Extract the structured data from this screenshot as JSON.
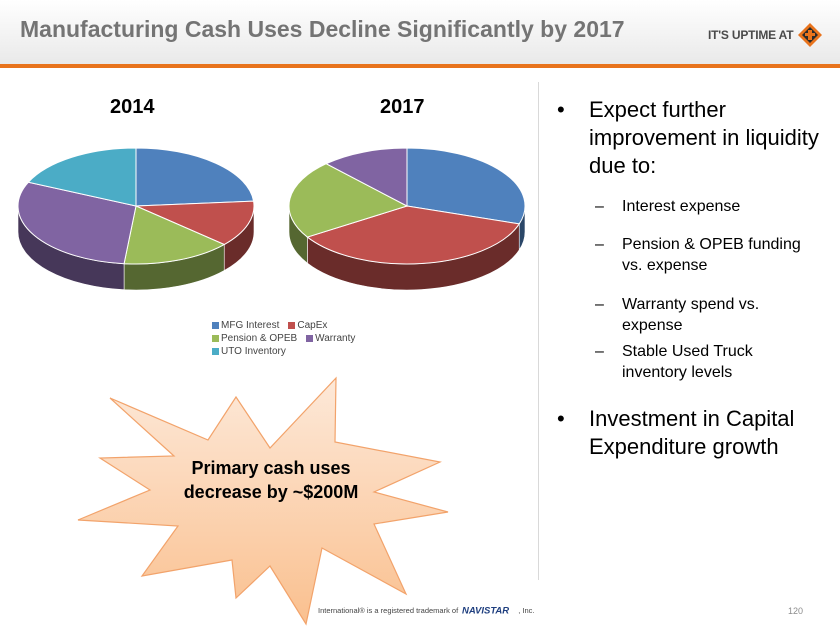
{
  "header": {
    "title": "Manufacturing Cash Uses Decline Significantly by 2017",
    "brand": "IT'S UPTIME AT",
    "brand_logo_icon": "international-diamond-logo-icon",
    "accent_color": "#e8731c"
  },
  "chart_data": {
    "type": "pie",
    "style": "3d",
    "legend_position": "bottom",
    "categories": [
      "MFG Interest",
      "CapEx",
      "Pension & OPEB",
      "Warranty",
      "UTO Inventory"
    ],
    "colors": [
      "#4f81bd",
      "#c0504d",
      "#9bbb59",
      "#8064a2",
      "#4bacc6"
    ],
    "series": [
      {
        "name": "2014",
        "values": [
          22,
          12,
          14,
          28,
          17
        ]
      },
      {
        "name": "2017",
        "values": [
          30,
          36,
          22,
          12,
          0
        ]
      }
    ]
  },
  "callout": {
    "text": "Primary cash uses decrease by ~$200M"
  },
  "bullets": [
    {
      "text": "Expect further improvement in liquidity due to:",
      "subs": [
        "Interest expense",
        "Pension & OPEB funding vs. expense",
        "Warranty spend vs. expense",
        "Stable Used Truck inventory levels"
      ]
    },
    {
      "text": "Investment in Capital Expenditure growth",
      "subs": []
    }
  ],
  "bullet_char": "•",
  "dash_char": "–",
  "footer": {
    "text_before": "International® is a registered trademark of",
    "logo_text": "NAVISTAR",
    "text_after": ", Inc.",
    "page_number": "120"
  }
}
